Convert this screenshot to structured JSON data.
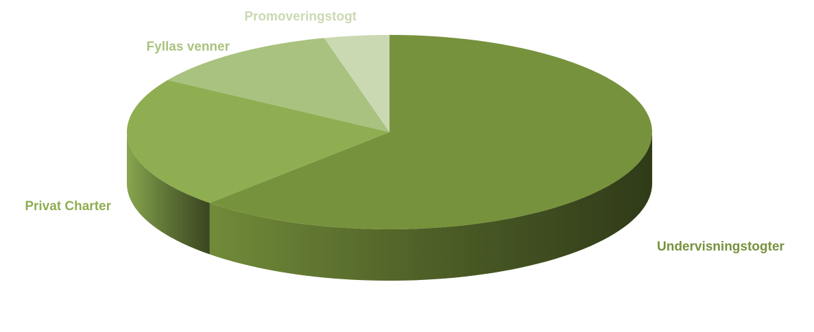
{
  "chart_data": {
    "type": "pie",
    "categories": [
      "Undervisningstogter",
      "Privat Charter",
      "Fyllas venner",
      "Promoveringstogt"
    ],
    "values": [
      62,
      22,
      12,
      4
    ],
    "colors": [
      "#77923c",
      "#8fae52",
      "#a9c27f",
      "#cbd9b3"
    ]
  }
}
